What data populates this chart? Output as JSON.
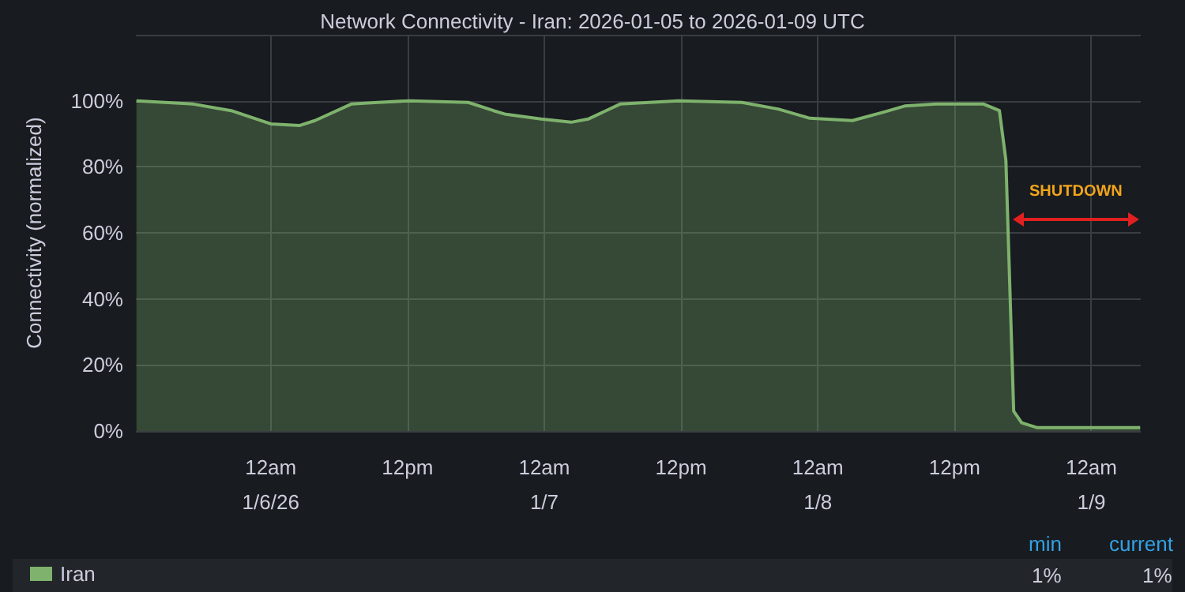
{
  "chart_data": {
    "type": "area",
    "title": "Network Connectivity - Iran: 2026-01-05 to 2026-01-09 UTC",
    "ylabel": "Connectivity (normalized)",
    "x": [
      "2026-01-05T12:13",
      "2026-01-05T17:12",
      "2026-01-05T20:32",
      "2026-01-06T00:00",
      "2026-01-06T02:30",
      "2026-01-06T03:53",
      "2026-01-06T07:04",
      "2026-01-06T09:26",
      "2026-01-06T12:12",
      "2026-01-06T17:20",
      "2026-01-06T19:33",
      "2026-01-06T20:31",
      "2026-01-06T23:43",
      "2026-01-07T02:21",
      "2026-01-07T03:53",
      "2026-01-07T06:39",
      "2026-01-07T11:47",
      "2026-01-07T17:20",
      "2026-01-07T20:31",
      "2026-01-07T23:18",
      "2026-01-08T03:02",
      "2026-01-08T05:49",
      "2026-01-08T07:37",
      "2026-01-08T10:23",
      "2026-01-08T14:33",
      "2026-01-08T15:56",
      "2026-01-08T16:30",
      "2026-01-08T17:11",
      "2026-01-08T17:53",
      "2026-01-08T19:16",
      "2026-01-09T04:17"
    ],
    "series": [
      {
        "name": "Iran",
        "color": "#7eb26d",
        "values": [
          100,
          99,
          97,
          93,
          92.5,
          94,
          99,
          99.5,
          100,
          99.5,
          97,
          96,
          94.5,
          93.5,
          94.5,
          99,
          100,
          99.5,
          97.5,
          94.7,
          94,
          96.6,
          98.4,
          99,
          99,
          97,
          82,
          6,
          2.5,
          1,
          1
        ]
      }
    ],
    "xlim": [
      "2026-01-05T12:10",
      "2026-01-09T04:20"
    ],
    "xticks": [
      {
        "value": "2026-01-06T00:00",
        "label": "12am\n1/6/26"
      },
      {
        "value": "2026-01-06T12:00",
        "label": "12pm"
      },
      {
        "value": "2026-01-07T00:00",
        "label": "12am\n1/7"
      },
      {
        "value": "2026-01-07T12:00",
        "label": "12pm"
      },
      {
        "value": "2026-01-08T00:00",
        "label": "12am\n1/8"
      },
      {
        "value": "2026-01-08T12:00",
        "label": "12pm"
      },
      {
        "value": "2026-01-09T00:00",
        "label": "12am\n1/9"
      }
    ],
    "ylim": [
      0,
      120
    ],
    "yticks": [
      {
        "value": 0,
        "label": "0%"
      },
      {
        "value": 20,
        "label": "20%"
      },
      {
        "value": 40,
        "label": "40%"
      },
      {
        "value": 60,
        "label": "60%"
      },
      {
        "value": 80,
        "label": "80%"
      },
      {
        "value": 100,
        "label": "100%"
      },
      {
        "value": 120,
        "label": null
      }
    ],
    "grid": true,
    "legend": "bottom left",
    "annotations": [
      "SHUTDOWN",
      "min",
      "current",
      "1%",
      "1%"
    ]
  }
}
